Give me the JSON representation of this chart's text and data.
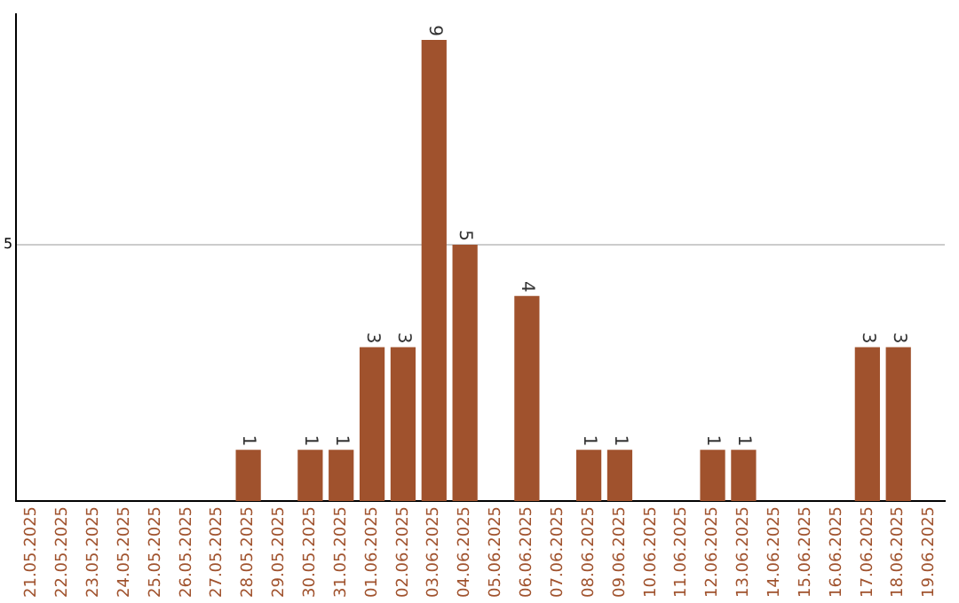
{
  "chart_data": {
    "type": "bar",
    "categories": [
      "21.05.2025",
      "22.05.2025",
      "23.05.2025",
      "24.05.2025",
      "25.05.2025",
      "26.05.2025",
      "27.05.2025",
      "28.05.2025",
      "29.05.2025",
      "30.05.2025",
      "31.05.2025",
      "01.06.2025",
      "02.06.2025",
      "03.06.2025",
      "04.06.2025",
      "05.06.2025",
      "06.06.2025",
      "07.06.2025",
      "08.06.2025",
      "09.06.2025",
      "10.06.2025",
      "11.06.2025",
      "12.06.2025",
      "13.06.2025",
      "14.06.2025",
      "15.06.2025",
      "16.06.2025",
      "17.06.2025",
      "18.06.2025",
      "19.06.2025"
    ],
    "values": [
      0,
      0,
      0,
      0,
      0,
      0,
      0,
      1,
      0,
      1,
      1,
      3,
      3,
      9,
      5,
      0,
      4,
      0,
      1,
      1,
      0,
      0,
      1,
      1,
      0,
      0,
      0,
      3,
      3,
      0
    ],
    "value_labels": [
      null,
      null,
      null,
      null,
      null,
      null,
      null,
      "1",
      null,
      "1",
      "1",
      "3",
      "3",
      "9",
      "5",
      null,
      "4",
      null,
      "1",
      "1",
      null,
      null,
      "1",
      "1",
      null,
      null,
      null,
      "3",
      "3",
      null
    ],
    "color": "#a0522d",
    "ylim": [
      0,
      9.5
    ],
    "yticks": [
      5
    ],
    "grid": "y",
    "legend": false
  }
}
